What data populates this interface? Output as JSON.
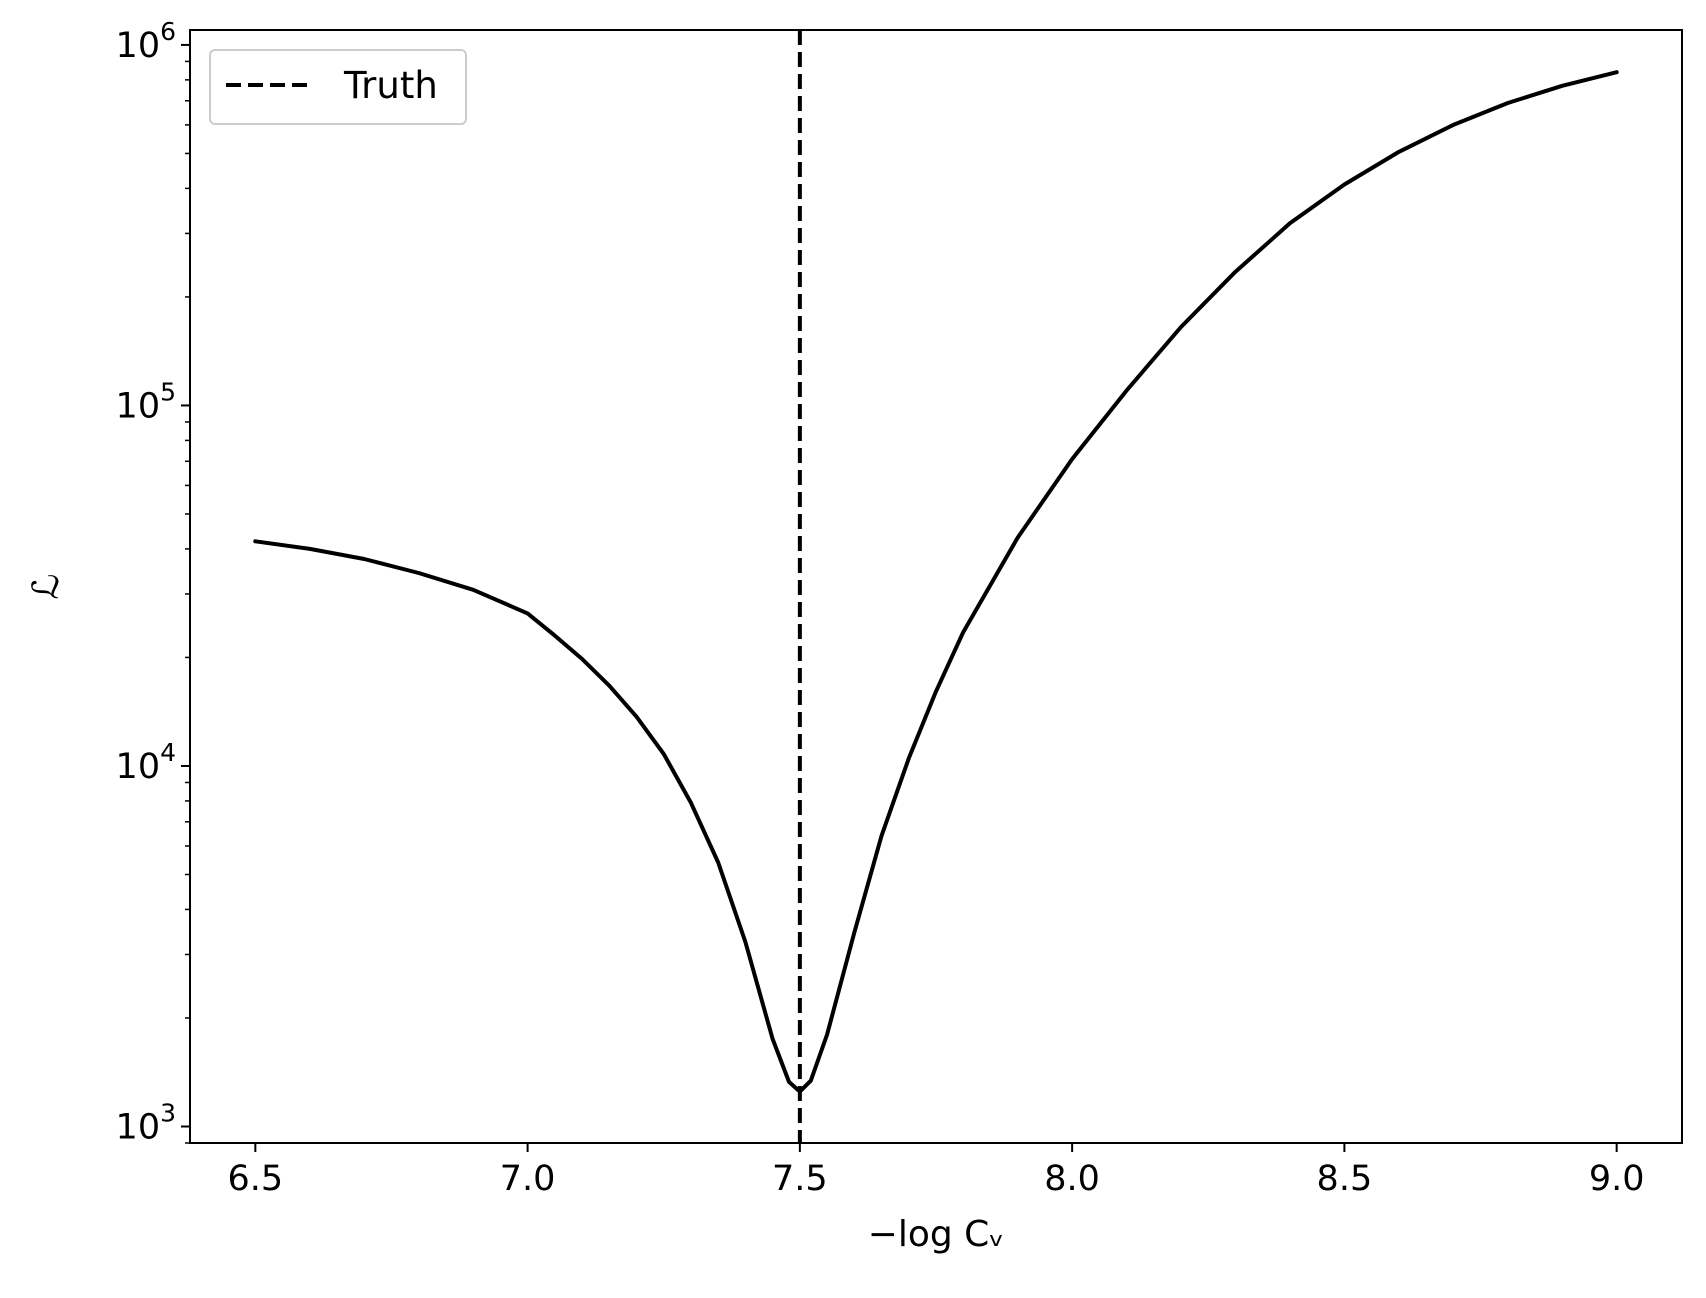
{
  "chart_data": {
    "type": "line",
    "title": "",
    "xlabel": "−log Cᵥ",
    "ylabel": "ℒ",
    "xlim": [
      6.38,
      9.12
    ],
    "ylim": [
      900,
      1100000
    ],
    "yscale": "log",
    "grid": false,
    "legend": {
      "placement": "top-left",
      "entries": [
        "Truth"
      ]
    },
    "x_ticks": [
      "6.5",
      "7.0",
      "7.5",
      "8.0",
      "8.5",
      "9.0"
    ],
    "y_ticks": [
      {
        "base": "10",
        "exp": "3",
        "value": 1000
      },
      {
        "base": "10",
        "exp": "4",
        "value": 10000
      },
      {
        "base": "10",
        "exp": "5",
        "value": 100000
      },
      {
        "base": "10",
        "exp": "6",
        "value": 1000000
      }
    ],
    "series": [
      {
        "style": "solid",
        "color": "#000000",
        "x": [
          6.5,
          6.6,
          6.7,
          6.8,
          6.9,
          7.0,
          7.05,
          7.1,
          7.15,
          7.2,
          7.25,
          7.3,
          7.35,
          7.4,
          7.45,
          7.48,
          7.5,
          7.52,
          7.55,
          7.6,
          7.65,
          7.7,
          7.75,
          7.8,
          7.9,
          8.0,
          8.1,
          8.2,
          8.3,
          8.4,
          8.5,
          8.6,
          8.7,
          8.8,
          8.9,
          9.0
        ],
        "y": [
          42000,
          40000,
          37500,
          34300,
          30800,
          26500,
          23000,
          19800,
          16700,
          13700,
          10800,
          7900,
          5400,
          3250,
          1750,
          1330,
          1250,
          1340,
          1800,
          3450,
          6400,
          10500,
          16100,
          23500,
          43000,
          71000,
          110000,
          165000,
          235000,
          320000,
          410000,
          505000,
          600000,
          690000,
          770000,
          840000
        ]
      },
      {
        "name": "Truth",
        "style": "dashed",
        "color": "#000000",
        "vertical_x": 7.5
      }
    ]
  }
}
